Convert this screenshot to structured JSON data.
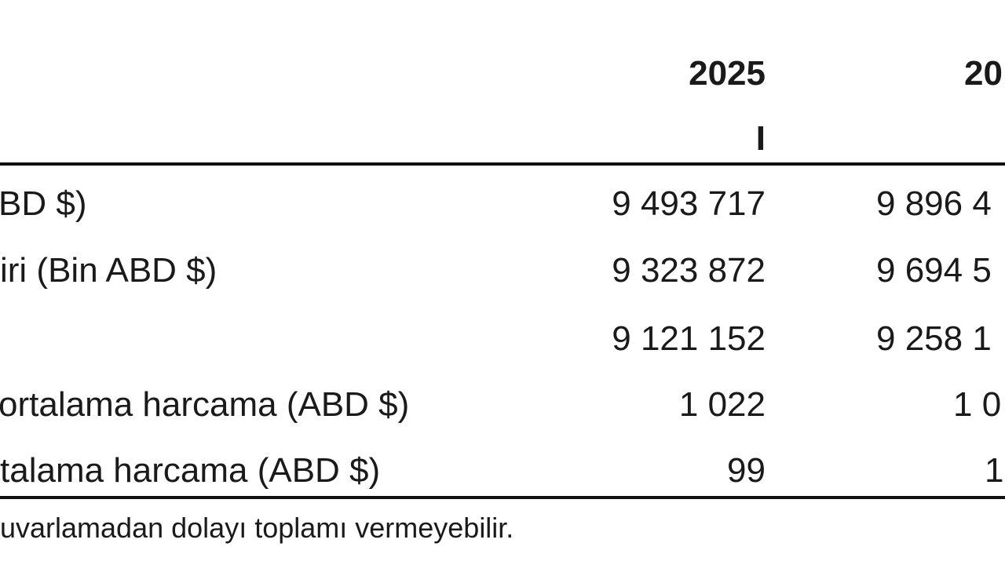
{
  "table": {
    "header": {
      "year_1": "2025",
      "quarter_1": "I",
      "year_2": "20"
    },
    "rows": [
      {
        "label": "BD $)",
        "value_1": "9 493 717",
        "value_2": "9 896 4"
      },
      {
        "label": "iri (Bin ABD $)",
        "value_1": "9 323 872",
        "value_2": "9 694 5"
      },
      {
        "label": "",
        "value_1": "9 121 152",
        "value_2": "9 258 1"
      },
      {
        "label": "ortalama harcama (ABD $)",
        "value_1": "1 022",
        "value_2": "1 0"
      },
      {
        "label": "talama harcama (ABD $)",
        "value_1": "99",
        "value_2": "1"
      }
    ],
    "footnote": "uvarlamadan dolayı toplamı vermeyebilir."
  }
}
